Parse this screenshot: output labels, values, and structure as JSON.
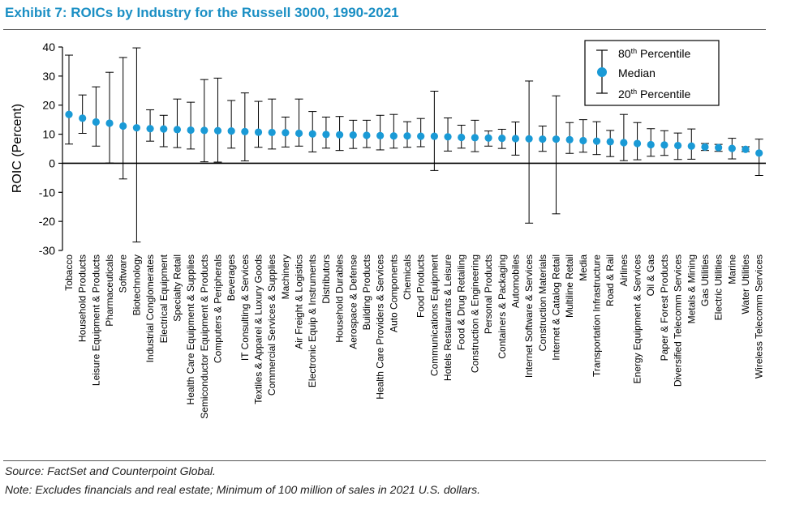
{
  "header": {
    "title": "Exhibit 7: ROICs by Industry for the Russell 3000, 1990-2021"
  },
  "footer": {
    "source": "Source: FactSet and Counterpoint Global.",
    "note": "Note: Excludes financials and real estate; Minimum of 100 million of sales in 2021 U.S. dollars."
  },
  "colors": {
    "title": "#1b8fc4",
    "marker": "#1a9ad6",
    "whisker": "#000000"
  },
  "chart_data": {
    "type": "errorbar",
    "title": "Exhibit 7: ROICs by Industry for the Russell 3000, 1990-2021",
    "ylabel": "ROIC (Percent)",
    "xlabel": "",
    "ylim": [
      -30,
      40
    ],
    "yticks": [
      40,
      30,
      20,
      10,
      0,
      -10,
      -20,
      -30
    ],
    "grid": false,
    "legend": {
      "placement": "top-right",
      "items": [
        {
          "base": "80",
          "sup": "th",
          "rest": " Percentile"
        },
        {
          "base": "Median",
          "sup": "",
          "rest": ""
        },
        {
          "base": "20",
          "sup": "th",
          "rest": " Percentile"
        }
      ]
    },
    "categories": [
      "Tobacco",
      "Household Products",
      "Leisure Equipment & Products",
      "Pharmaceuticals",
      "Software",
      "Biotechnology",
      "Industrial Conglomerates",
      "Electrical Equipment",
      "Specialty Retail",
      "Health Care Equipment & Supplies",
      "Semiconductor Equipment & Products",
      "Computers & Peripherals",
      "Beverages",
      "IT Consulting & Services",
      "Textiles & Apparel & Luxury Goods",
      "Commercial Services & Supplies",
      "Machinery",
      "Air Freight & Logistics",
      "Electronic Equip & Instruments",
      "Distributors",
      "Household Durables",
      "Aerospace & Defense",
      "Building Products",
      "Health Care Providers & Services",
      "Auto Components",
      "Chemicals",
      "Food Products",
      "Communications Equipment",
      "Hotels Restaurants & Leisure",
      "Food & Drug Retailing",
      "Construction & Engineering",
      "Personal Products",
      "Containers & Packaging",
      "Automobiles",
      "Internet Software & Services",
      "Construction Materials",
      "Internet & Catalog Retail",
      "Multiline Retail",
      "Media",
      "Transportation Infrastructure",
      "Road & Rail",
      "Airlines",
      "Energy Equipment & Services",
      "Oil & Gas",
      "Paper & Forest Products",
      "Diversified Telecomm Services",
      "Metals & Mining",
      "Gas Utilities",
      "Electric Utilities",
      "Marine",
      "Water Utilities",
      "Wireless Telecomm Services"
    ],
    "series": [
      {
        "name": "Median",
        "values": [
          16.8,
          15.5,
          14.2,
          13.8,
          12.8,
          12.2,
          11.9,
          11.8,
          11.6,
          11.4,
          11.3,
          11.2,
          11.1,
          10.9,
          10.7,
          10.6,
          10.5,
          10.3,
          10.1,
          9.9,
          9.8,
          9.7,
          9.6,
          9.5,
          9.4,
          9.4,
          9.3,
          9.3,
          9.1,
          8.9,
          8.8,
          8.7,
          8.6,
          8.5,
          8.4,
          8.3,
          8.3,
          8.1,
          7.8,
          7.6,
          7.4,
          7.1,
          6.8,
          6.4,
          6.3,
          6.1,
          5.9,
          5.6,
          5.4,
          5.1,
          4.8,
          3.5
        ]
      },
      {
        "name": "80th Percentile",
        "values": [
          37.2,
          23.5,
          26.3,
          31.3,
          36.4,
          39.7,
          18.4,
          16.5,
          22.1,
          21.0,
          28.8,
          29.3,
          21.6,
          24.2,
          21.3,
          22.1,
          15.9,
          22.1,
          17.8,
          15.9,
          16.1,
          14.8,
          14.8,
          16.5,
          16.8,
          14.3,
          15.4,
          24.8,
          15.6,
          13.1,
          14.8,
          11.1,
          11.7,
          14.2,
          28.3,
          12.8,
          23.2,
          14.0,
          15.0,
          14.3,
          11.3,
          16.8,
          14.0,
          11.9,
          11.2,
          10.4,
          11.8,
          6.8,
          6.5,
          8.6,
          5.7,
          8.3
        ]
      },
      {
        "name": "20th Percentile",
        "values": [
          6.6,
          10.3,
          5.9,
          0.1,
          -5.4,
          -27.1,
          7.6,
          5.7,
          5.4,
          4.9,
          0.5,
          0.4,
          5.2,
          0.8,
          5.5,
          4.9,
          5.6,
          5.9,
          3.9,
          5.2,
          4.4,
          5.1,
          5.4,
          4.6,
          5.2,
          5.5,
          5.7,
          -2.5,
          4.2,
          5.2,
          4.0,
          5.9,
          5.1,
          2.8,
          -20.6,
          4.1,
          -17.4,
          3.4,
          3.8,
          3.0,
          2.3,
          0.9,
          1.2,
          2.4,
          2.7,
          1.3,
          1.4,
          4.4,
          4.1,
          1.5,
          4.0,
          -4.2
        ]
      }
    ]
  }
}
